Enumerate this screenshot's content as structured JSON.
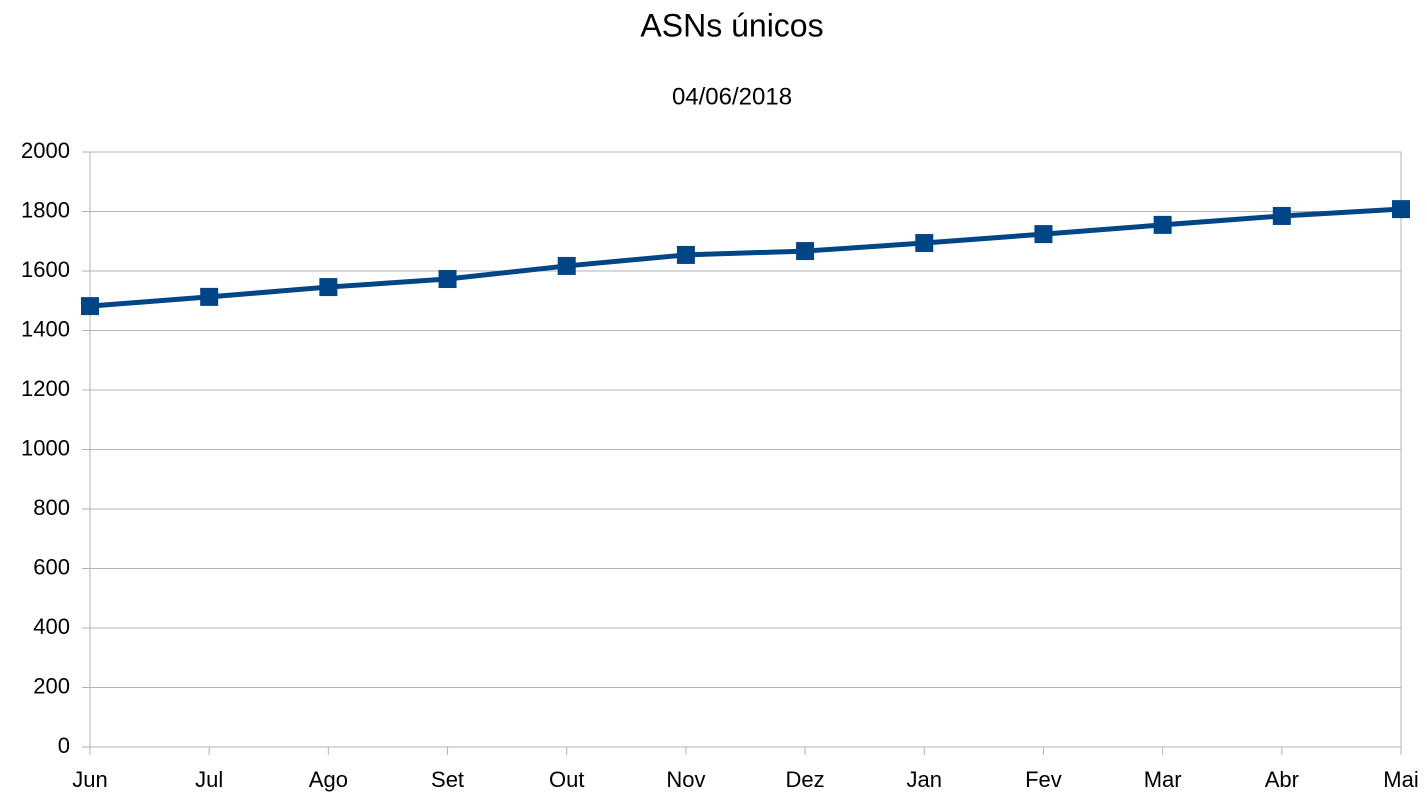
{
  "chart_data": {
    "type": "line",
    "title": "ASNs únicos",
    "subtitle": "04/06/2018",
    "categories": [
      "Jun",
      "Jul",
      "Ago",
      "Set",
      "Out",
      "Nov",
      "Dez",
      "Jan",
      "Fev",
      "Mar",
      "Abr",
      "Mai"
    ],
    "series": [
      {
        "name": "ASNs únicos",
        "color": "#004586",
        "values": [
          1482,
          1513,
          1546,
          1573,
          1617,
          1654,
          1667,
          1694,
          1724,
          1755,
          1785,
          1808
        ]
      }
    ],
    "ylim": [
      0,
      2000
    ],
    "yticks": [
      0,
      200,
      400,
      600,
      800,
      1000,
      1200,
      1400,
      1600,
      1800,
      2000
    ],
    "grid": true
  }
}
